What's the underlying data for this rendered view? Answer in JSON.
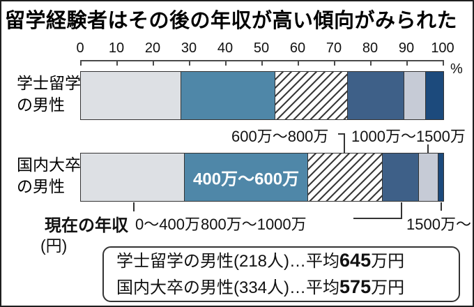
{
  "title": "留学経験者はその後の年収が高い傾向がみられた",
  "axis": {
    "ticks": [
      "0",
      "10",
      "20",
      "30",
      "40",
      "50",
      "60",
      "70",
      "80",
      "90",
      "100"
    ],
    "unit_label": "%"
  },
  "chart_data": {
    "type": "bar",
    "stacked": true,
    "orientation": "horizontal",
    "value_unit": "%",
    "xlim": [
      0,
      100
    ],
    "categories": [
      "学士留学の男性",
      "国内大卒の男性"
    ],
    "segment_labels": [
      "0〜400万",
      "400万〜600万",
      "600万〜800万",
      "800万〜1000万",
      "1000万〜1500万",
      "1500万〜"
    ],
    "series": [
      {
        "name": "学士留学の男性",
        "values": [
          27.5,
          26,
          20,
          15.5,
          6,
          5
        ]
      },
      {
        "name": "国内大卒の男性",
        "values": [
          28.5,
          34,
          20.5,
          10,
          5.5,
          1.5
        ]
      }
    ],
    "inline_label": "400万〜600万"
  },
  "bar_labels": {
    "bar1_line1": "学士留学",
    "bar1_line2": "の男性",
    "bar2_line1": "国内大卒",
    "bar2_line2": "の男性"
  },
  "annotations": {
    "label_600_800": "600万〜800万",
    "label_1000_1500": "1000万〜1500万",
    "current_income_label": "現在の年収",
    "label_0_400": "0〜400万",
    "label_800_1000": "800万〜1000万",
    "label_1500_plus": "1500万〜",
    "unit_yen": "(円)"
  },
  "summary_box": {
    "line1_prefix": "学士留学の男性(218人)…平均",
    "line1_value": "645",
    "line1_suffix": "万円",
    "line2_prefix": "国内大卒の男性(334人)…平均",
    "line2_value": "575",
    "line2_suffix": "万円"
  },
  "colors": {
    "segments": [
      "#dde0e4",
      "#4f87a8",
      "hatch",
      "#3e6088",
      "#c6cbd6",
      "#1c4a7c"
    ],
    "hatch_line": "#3a3a3a",
    "axis": "#4a4a4a",
    "text": "#111111"
  }
}
